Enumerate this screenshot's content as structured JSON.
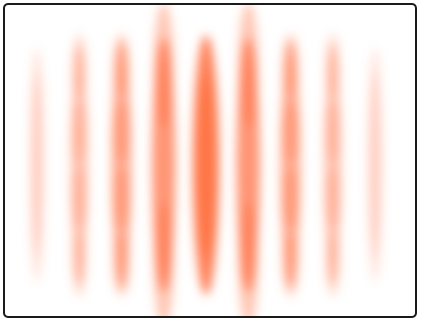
{
  "image": {
    "description_colors": {
      "fringe_color": "#ff6a3a",
      "background": "#ffffff",
      "border": "#1a1a1a"
    },
    "fringes": [
      {
        "intensity": 0.1,
        "blobs": 1
      },
      {
        "intensity": 0.35,
        "blobs": 4
      },
      {
        "intensity": 0.55,
        "blobs": 4
      },
      {
        "intensity": 0.8,
        "blobs": 2
      },
      {
        "intensity": 1.0,
        "blobs": 1
      },
      {
        "intensity": 0.8,
        "blobs": 2
      },
      {
        "intensity": 0.55,
        "blobs": 4
      },
      {
        "intensity": 0.35,
        "blobs": 4
      },
      {
        "intensity": 0.1,
        "blobs": 1
      }
    ]
  }
}
